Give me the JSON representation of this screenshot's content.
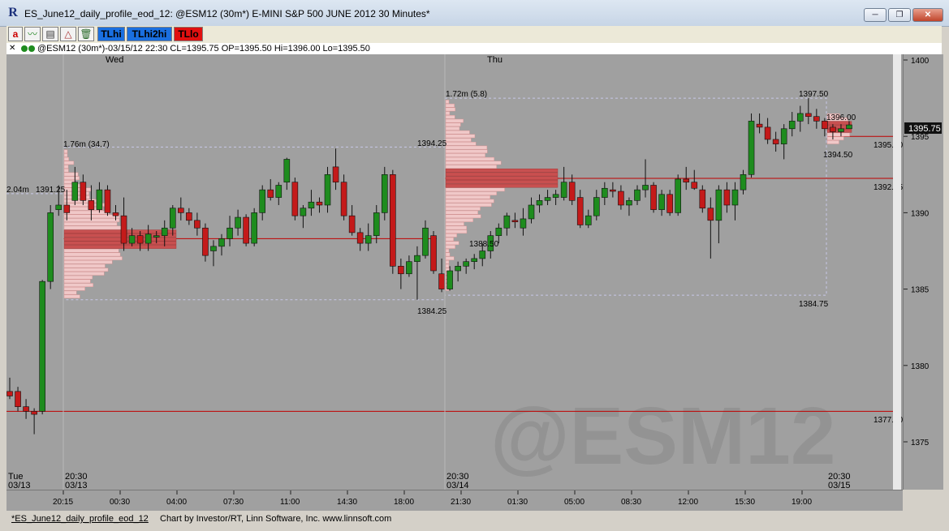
{
  "window": {
    "title": "ES_June12_daily_profile_eod_12: @ESM12 (30m*) E-MINI S&P 500 JUNE 2012 30 Minutes*",
    "app_icon": "R",
    "minimize": "─",
    "restore": "❐",
    "close": "✕"
  },
  "toolbar": {
    "buttons": [
      {
        "name": "text-tool",
        "label": "a"
      },
      {
        "name": "trend-icon",
        "label": "〰"
      },
      {
        "name": "studies-icon",
        "label": "▤"
      },
      {
        "name": "draw-icon",
        "label": "△"
      },
      {
        "name": "trash-icon",
        "label": "🗑"
      },
      {
        "name": "tlhi",
        "label": "TLhi"
      },
      {
        "name": "tlhi2hi",
        "label": "TLhi2hi"
      },
      {
        "name": "tllo",
        "label": "TLlo"
      }
    ]
  },
  "infobar": {
    "close": "✕",
    "text": "@ESM12 (30m*)-03/15/12 22:30 CL=1395.75 OP=1395.50 Hi=1396.00 Lo=1395.50"
  },
  "chart_data": {
    "type": "candlestick",
    "symbol_watermark": "@ESM12",
    "day_labels": [
      "Wed",
      "Thu"
    ],
    "y_ticks": [
      1375,
      1380,
      1385,
      1390,
      1395,
      1400
    ],
    "last_price_label": "1395.75",
    "levels": [
      {
        "label": "1395.00",
        "value": 1395.0
      },
      {
        "label": "1392.25",
        "value": 1392.25
      },
      {
        "label": "1377.00",
        "value": 1377.0
      }
    ],
    "profile_annotations": [
      {
        "text": "1.76m (34.7)"
      },
      {
        "text": "2.04m"
      },
      {
        "text": "1391.25"
      },
      {
        "text": "1384.25"
      },
      {
        "text": "1.72m (5.8)"
      },
      {
        "text": "1394.25"
      },
      {
        "text": "1388.50"
      },
      {
        "text": "1384.75"
      },
      {
        "text": "1397.50"
      },
      {
        "text": "1396.00"
      },
      {
        "text": "1394.50"
      }
    ],
    "session_labels": [
      {
        "time": "Tue",
        "date": "03/13"
      },
      {
        "time": "20:30",
        "date": "03/13"
      },
      {
        "time": "20:30",
        "date": "03/14"
      },
      {
        "time": "20:30",
        "date": "03/15"
      }
    ],
    "x_ticks": [
      "20:15",
      "00:30",
      "04:00",
      "07:30",
      "11:00",
      "14:30",
      "18:00",
      "21:30",
      "01:30",
      "05:00",
      "08:30",
      "12:00",
      "15:30",
      "19:00"
    ],
    "candles": [
      {
        "o": 1378.3,
        "h": 1379.2,
        "l": 1377.8,
        "c": 1378.0
      },
      {
        "o": 1378.3,
        "h": 1378.6,
        "l": 1377.0,
        "c": 1377.3
      },
      {
        "o": 1377.3,
        "h": 1377.8,
        "l": 1376.5,
        "c": 1377.0
      },
      {
        "o": 1377.0,
        "h": 1377.2,
        "l": 1375.5,
        "c": 1376.8
      },
      {
        "o": 1377.0,
        "h": 1385.6,
        "l": 1376.8,
        "c": 1385.5
      },
      {
        "o": 1385.5,
        "h": 1390.5,
        "l": 1385.0,
        "c": 1390.0
      },
      {
        "o": 1390.2,
        "h": 1391.8,
        "l": 1389.8,
        "c": 1390.5
      },
      {
        "o": 1390.5,
        "h": 1391.5,
        "l": 1389.5,
        "c": 1390.0
      },
      {
        "o": 1390.8,
        "h": 1393.0,
        "l": 1390.5,
        "c": 1392.0
      },
      {
        "o": 1392.0,
        "h": 1392.5,
        "l": 1390.5,
        "c": 1390.8
      },
      {
        "o": 1390.8,
        "h": 1391.8,
        "l": 1389.5,
        "c": 1390.2
      },
      {
        "o": 1390.2,
        "h": 1392.0,
        "l": 1390.0,
        "c": 1391.5
      },
      {
        "o": 1391.5,
        "h": 1391.8,
        "l": 1389.8,
        "c": 1390.0
      },
      {
        "o": 1390.0,
        "h": 1390.5,
        "l": 1389.5,
        "c": 1389.8
      },
      {
        "o": 1389.8,
        "h": 1391.0,
        "l": 1387.5,
        "c": 1388.0
      },
      {
        "o": 1388.0,
        "h": 1389.0,
        "l": 1387.8,
        "c": 1388.5
      },
      {
        "o": 1388.5,
        "h": 1388.8,
        "l": 1387.5,
        "c": 1388.0
      },
      {
        "o": 1388.0,
        "h": 1389.2,
        "l": 1387.5,
        "c": 1388.6
      },
      {
        "o": 1388.4,
        "h": 1388.8,
        "l": 1388.0,
        "c": 1388.5
      },
      {
        "o": 1388.5,
        "h": 1389.5,
        "l": 1387.8,
        "c": 1389.0
      },
      {
        "o": 1389.0,
        "h": 1390.5,
        "l": 1388.5,
        "c": 1390.3
      },
      {
        "o": 1390.3,
        "h": 1391.0,
        "l": 1389.5,
        "c": 1390.0
      },
      {
        "o": 1390.0,
        "h": 1390.3,
        "l": 1389.2,
        "c": 1389.5
      },
      {
        "o": 1389.5,
        "h": 1390.0,
        "l": 1388.5,
        "c": 1389.0
      },
      {
        "o": 1389.0,
        "h": 1389.3,
        "l": 1386.8,
        "c": 1387.2
      },
      {
        "o": 1387.5,
        "h": 1388.2,
        "l": 1386.5,
        "c": 1387.8
      },
      {
        "o": 1387.8,
        "h": 1388.6,
        "l": 1387.2,
        "c": 1388.3
      },
      {
        "o": 1388.3,
        "h": 1389.8,
        "l": 1387.8,
        "c": 1389.0
      },
      {
        "o": 1389.0,
        "h": 1390.2,
        "l": 1388.5,
        "c": 1389.7
      },
      {
        "o": 1389.7,
        "h": 1389.9,
        "l": 1387.8,
        "c": 1388.0
      },
      {
        "o": 1388.0,
        "h": 1390.3,
        "l": 1387.8,
        "c": 1390.0
      },
      {
        "o": 1390.0,
        "h": 1391.8,
        "l": 1389.5,
        "c": 1391.5
      },
      {
        "o": 1391.5,
        "h": 1392.2,
        "l": 1390.8,
        "c": 1391.0
      },
      {
        "o": 1391.0,
        "h": 1392.0,
        "l": 1390.5,
        "c": 1391.8
      },
      {
        "o": 1392.0,
        "h": 1393.6,
        "l": 1391.5,
        "c": 1393.5
      },
      {
        "o": 1392.0,
        "h": 1392.3,
        "l": 1389.5,
        "c": 1389.8
      },
      {
        "o": 1389.8,
        "h": 1390.5,
        "l": 1389.0,
        "c": 1390.3
      },
      {
        "o": 1390.3,
        "h": 1391.5,
        "l": 1389.8,
        "c": 1390.7
      },
      {
        "o": 1390.7,
        "h": 1391.0,
        "l": 1390.0,
        "c": 1390.5
      },
      {
        "o": 1390.5,
        "h": 1393.0,
        "l": 1390.0,
        "c": 1392.5
      },
      {
        "o": 1393.0,
        "h": 1394.2,
        "l": 1391.5,
        "c": 1392.0
      },
      {
        "o": 1392.0,
        "h": 1392.5,
        "l": 1389.5,
        "c": 1389.8
      },
      {
        "o": 1389.8,
        "h": 1390.5,
        "l": 1388.5,
        "c": 1388.7
      },
      {
        "o": 1388.7,
        "h": 1389.0,
        "l": 1387.5,
        "c": 1388.0
      },
      {
        "o": 1388.0,
        "h": 1389.3,
        "l": 1387.5,
        "c": 1388.5
      },
      {
        "o": 1388.5,
        "h": 1390.5,
        "l": 1388.0,
        "c": 1390.0
      },
      {
        "o": 1390.0,
        "h": 1393.0,
        "l": 1389.5,
        "c": 1392.5
      },
      {
        "o": 1392.5,
        "h": 1392.8,
        "l": 1386.0,
        "c": 1386.5
      },
      {
        "o": 1386.5,
        "h": 1387.0,
        "l": 1385.0,
        "c": 1386.0
      },
      {
        "o": 1386.0,
        "h": 1387.2,
        "l": 1385.8,
        "c": 1386.8
      },
      {
        "o": 1386.8,
        "h": 1387.8,
        "l": 1384.3,
        "c": 1387.2
      },
      {
        "o": 1387.2,
        "h": 1389.5,
        "l": 1387.0,
        "c": 1389.0
      },
      {
        "o": 1388.5,
        "h": 1388.8,
        "l": 1386.0,
        "c": 1386.2
      },
      {
        "o": 1386.0,
        "h": 1387.0,
        "l": 1384.8,
        "c": 1385.0
      },
      {
        "o": 1385.0,
        "h": 1386.5,
        "l": 1384.9,
        "c": 1386.2
      },
      {
        "o": 1386.2,
        "h": 1386.8,
        "l": 1385.5,
        "c": 1386.5
      },
      {
        "o": 1386.5,
        "h": 1387.0,
        "l": 1386.0,
        "c": 1386.8
      },
      {
        "o": 1386.8,
        "h": 1387.3,
        "l": 1386.3,
        "c": 1387.0
      },
      {
        "o": 1387.0,
        "h": 1388.0,
        "l": 1386.5,
        "c": 1387.5
      },
      {
        "o": 1387.5,
        "h": 1388.8,
        "l": 1387.0,
        "c": 1388.5
      },
      {
        "o": 1388.5,
        "h": 1389.3,
        "l": 1388.0,
        "c": 1389.0
      },
      {
        "o": 1389.0,
        "h": 1390.0,
        "l": 1388.5,
        "c": 1389.8
      },
      {
        "o": 1389.5,
        "h": 1390.0,
        "l": 1389.0,
        "c": 1389.4
      },
      {
        "o": 1389.0,
        "h": 1390.3,
        "l": 1388.5,
        "c": 1389.6
      },
      {
        "o": 1389.6,
        "h": 1391.0,
        "l": 1389.3,
        "c": 1390.5
      },
      {
        "o": 1390.5,
        "h": 1391.2,
        "l": 1390.0,
        "c": 1390.8
      },
      {
        "o": 1390.8,
        "h": 1391.5,
        "l": 1390.5,
        "c": 1391.0
      },
      {
        "o": 1391.0,
        "h": 1391.5,
        "l": 1390.5,
        "c": 1391.2
      },
      {
        "o": 1391.0,
        "h": 1393.0,
        "l": 1390.8,
        "c": 1392.0
      },
      {
        "o": 1392.0,
        "h": 1392.5,
        "l": 1390.5,
        "c": 1390.8
      },
      {
        "o": 1391.0,
        "h": 1391.5,
        "l": 1389.0,
        "c": 1389.2
      },
      {
        "o": 1389.2,
        "h": 1390.2,
        "l": 1389.0,
        "c": 1389.8
      },
      {
        "o": 1389.8,
        "h": 1391.5,
        "l": 1389.5,
        "c": 1391.0
      },
      {
        "o": 1391.0,
        "h": 1392.0,
        "l": 1390.5,
        "c": 1391.6
      },
      {
        "o": 1391.5,
        "h": 1392.0,
        "l": 1391.0,
        "c": 1391.4
      },
      {
        "o": 1391.4,
        "h": 1391.8,
        "l": 1390.2,
        "c": 1390.5
      },
      {
        "o": 1390.5,
        "h": 1391.0,
        "l": 1389.8,
        "c": 1390.8
      },
      {
        "o": 1390.8,
        "h": 1391.8,
        "l": 1390.5,
        "c": 1391.5
      },
      {
        "o": 1391.5,
        "h": 1393.5,
        "l": 1391.0,
        "c": 1391.8
      },
      {
        "o": 1391.8,
        "h": 1392.0,
        "l": 1390.0,
        "c": 1390.2
      },
      {
        "o": 1390.2,
        "h": 1391.5,
        "l": 1389.8,
        "c": 1391.2
      },
      {
        "o": 1391.2,
        "h": 1391.5,
        "l": 1389.8,
        "c": 1390.0
      },
      {
        "o": 1390.0,
        "h": 1392.5,
        "l": 1389.8,
        "c": 1392.2
      },
      {
        "o": 1392.2,
        "h": 1393.0,
        "l": 1391.5,
        "c": 1392.0
      },
      {
        "o": 1392.0,
        "h": 1392.8,
        "l": 1391.5,
        "c": 1391.6
      },
      {
        "o": 1391.5,
        "h": 1391.8,
        "l": 1390.0,
        "c": 1390.3
      },
      {
        "o": 1390.3,
        "h": 1391.0,
        "l": 1387.0,
        "c": 1389.5
      },
      {
        "o": 1389.5,
        "h": 1391.8,
        "l": 1388.0,
        "c": 1391.5
      },
      {
        "o": 1391.5,
        "h": 1392.0,
        "l": 1390.0,
        "c": 1390.5
      },
      {
        "o": 1390.5,
        "h": 1392.0,
        "l": 1389.5,
        "c": 1391.5
      },
      {
        "o": 1391.5,
        "h": 1392.8,
        "l": 1391.2,
        "c": 1392.5
      },
      {
        "o": 1392.5,
        "h": 1396.5,
        "l": 1392.3,
        "c": 1396.0
      },
      {
        "o": 1395.8,
        "h": 1396.5,
        "l": 1395.2,
        "c": 1395.6
      },
      {
        "o": 1395.6,
        "h": 1396.2,
        "l": 1394.5,
        "c": 1394.8
      },
      {
        "o": 1394.8,
        "h": 1395.3,
        "l": 1394.0,
        "c": 1394.5
      },
      {
        "o": 1394.5,
        "h": 1395.8,
        "l": 1393.5,
        "c": 1395.5
      },
      {
        "o": 1395.5,
        "h": 1396.6,
        "l": 1395.0,
        "c": 1396.0
      },
      {
        "o": 1396.0,
        "h": 1397.0,
        "l": 1395.3,
        "c": 1396.5
      },
      {
        "o": 1396.5,
        "h": 1397.5,
        "l": 1395.8,
        "c": 1396.3
      },
      {
        "o": 1396.3,
        "h": 1396.8,
        "l": 1395.5,
        "c": 1396.0
      },
      {
        "o": 1396.0,
        "h": 1396.2,
        "l": 1395.0,
        "c": 1395.5
      },
      {
        "o": 1395.6,
        "h": 1395.8,
        "l": 1394.8,
        "c": 1395.3
      },
      {
        "o": 1395.3,
        "h": 1395.8,
        "l": 1395.0,
        "c": 1395.5
      },
      {
        "o": 1395.5,
        "h": 1396.0,
        "l": 1395.5,
        "c": 1395.75
      }
    ]
  },
  "status": {
    "tab": "*ES_June12_daily_profile_eod_12",
    "credit": "Chart by Investor/RT, Linn Software, Inc. www.linnsoft.com"
  },
  "colors": {
    "bull": "#1e8c1e",
    "bear": "#c41a1a",
    "level_line": "#c00000",
    "profile_light": "#f0c8c8",
    "profile_dark": "#c85050",
    "chart_bg": "#a0a0a0"
  }
}
